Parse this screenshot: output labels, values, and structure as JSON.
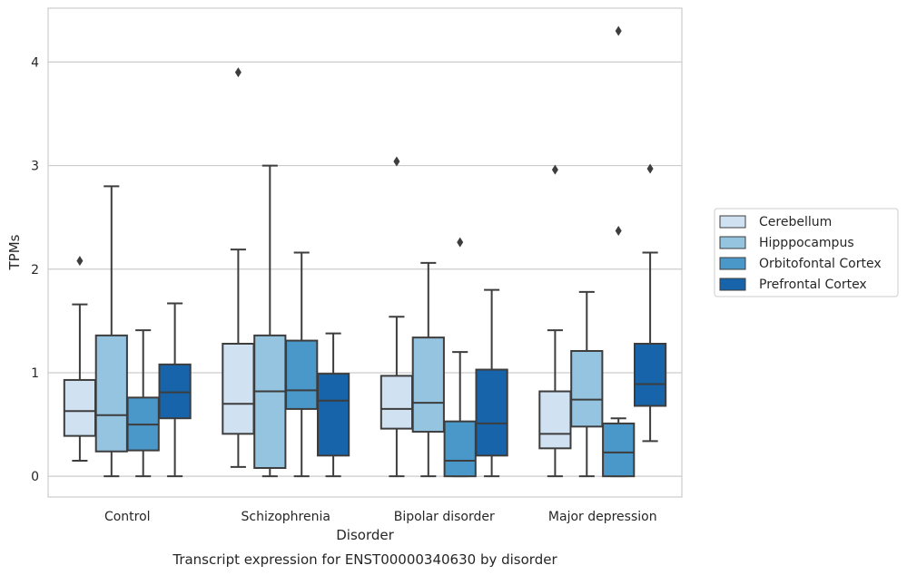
{
  "chart_data": {
    "type": "box",
    "title": "",
    "caption": "Transcript expression for ENST00000340630 by disorder",
    "xlabel": "Disorder",
    "ylabel": "TPMs",
    "ylim": [
      -0.2,
      4.52
    ],
    "yticks": [
      0,
      1,
      2,
      3,
      4
    ],
    "grid": "horizontal",
    "legend_position": "right",
    "categories": [
      "Control",
      "Schizophrenia",
      "Bipolar disorder",
      "Major depression"
    ],
    "series": [
      {
        "name": "Cerebellum",
        "color": "#d0e1f2",
        "boxes": [
          {
            "whislo": 0.15,
            "q1": 0.39,
            "med": 0.63,
            "q3": 0.93,
            "whishi": 1.66,
            "fliers": [
              2.08
            ]
          },
          {
            "whislo": 0.09,
            "q1": 0.41,
            "med": 0.7,
            "q3": 1.28,
            "whishi": 2.19,
            "fliers": [
              3.9
            ]
          },
          {
            "whislo": 0.0,
            "q1": 0.46,
            "med": 0.65,
            "q3": 0.97,
            "whishi": 1.54,
            "fliers": [
              3.04
            ]
          },
          {
            "whislo": 0.0,
            "q1": 0.27,
            "med": 0.41,
            "q3": 0.82,
            "whishi": 1.41,
            "fliers": [
              2.96
            ]
          }
        ]
      },
      {
        "name": "Hipppocampus",
        "color": "#94c4df",
        "boxes": [
          {
            "whislo": 0.0,
            "q1": 0.24,
            "med": 0.59,
            "q3": 1.36,
            "whishi": 2.8,
            "fliers": []
          },
          {
            "whislo": 0.0,
            "q1": 0.08,
            "med": 0.82,
            "q3": 1.36,
            "whishi": 3.0,
            "fliers": []
          },
          {
            "whislo": 0.0,
            "q1": 0.43,
            "med": 0.71,
            "q3": 1.34,
            "whishi": 2.06,
            "fliers": []
          },
          {
            "whislo": 0.0,
            "q1": 0.48,
            "med": 0.74,
            "q3": 1.21,
            "whishi": 1.78,
            "fliers": []
          }
        ]
      },
      {
        "name": "Orbitofontal Cortex",
        "color": "#4a98c9",
        "boxes": [
          {
            "whislo": 0.0,
            "q1": 0.25,
            "med": 0.5,
            "q3": 0.76,
            "whishi": 1.41,
            "fliers": []
          },
          {
            "whislo": 0.0,
            "q1": 0.65,
            "med": 0.83,
            "q3": 1.31,
            "whishi": 2.16,
            "fliers": []
          },
          {
            "whislo": 0.0,
            "q1": 0.0,
            "med": 0.15,
            "q3": 0.53,
            "whishi": 1.2,
            "fliers": [
              2.26
            ]
          },
          {
            "whislo": 0.0,
            "q1": 0.0,
            "med": 0.23,
            "q3": 0.51,
            "whishi": 0.56,
            "fliers": [
              2.37,
              4.3
            ]
          }
        ]
      },
      {
        "name": "Prefrontal Cortex",
        "color": "#1764ab",
        "boxes": [
          {
            "whislo": 0.0,
            "q1": 0.56,
            "med": 0.81,
            "q3": 1.08,
            "whishi": 1.67,
            "fliers": []
          },
          {
            "whislo": 0.0,
            "q1": 0.2,
            "med": 0.73,
            "q3": 0.99,
            "whishi": 1.38,
            "fliers": []
          },
          {
            "whislo": 0.0,
            "q1": 0.2,
            "med": 0.51,
            "q3": 1.03,
            "whishi": 1.8,
            "fliers": []
          },
          {
            "whislo": 0.34,
            "q1": 0.68,
            "med": 0.89,
            "q3": 1.28,
            "whishi": 2.16,
            "fliers": [
              2.97
            ]
          }
        ]
      }
    ]
  },
  "style": {
    "edge_color": "#3d3d3d",
    "grid_color": "#cccccc",
    "frame_color": "#cccccc",
    "text_color": "#262626"
  }
}
